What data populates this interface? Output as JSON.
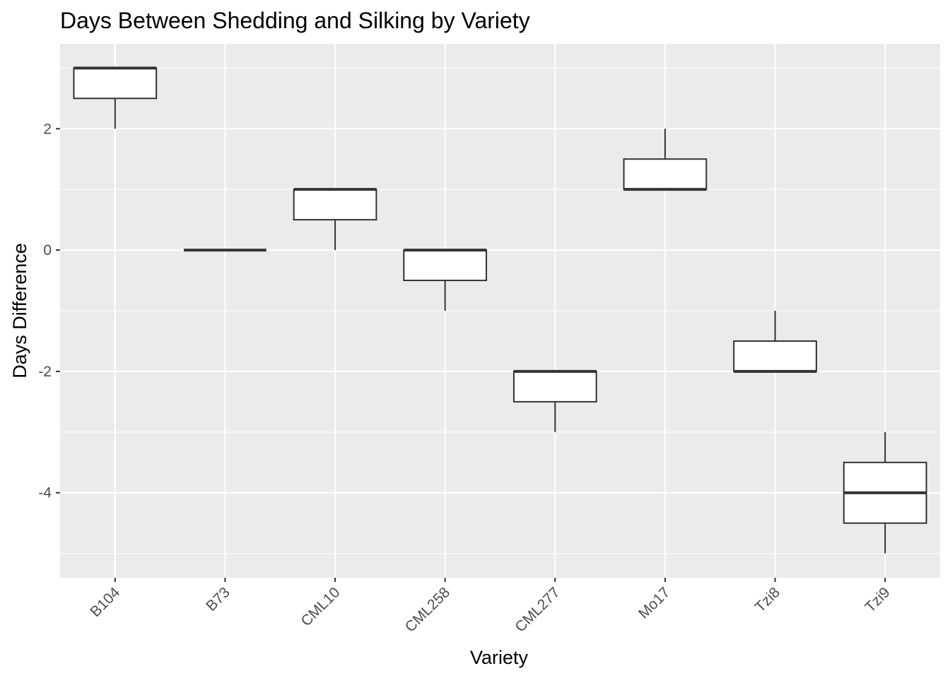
{
  "chart_data": {
    "type": "boxplot",
    "title": "Days Between Shedding and Silking by Variety",
    "xlabel": "Variety",
    "ylabel": "Days Difference",
    "ylim": [
      -5.4,
      3.4
    ],
    "yticks": [
      -4,
      -2,
      0,
      2
    ],
    "grid": true,
    "categories": [
      "B104",
      "B73",
      "CML10",
      "CML258",
      "CML277",
      "Mo17",
      "Tzi8",
      "Tzi9"
    ],
    "boxes": [
      {
        "category": "B104",
        "min": 2,
        "q1": 2.5,
        "median": 3,
        "q3": 3,
        "max": 3
      },
      {
        "category": "B73",
        "min": 0,
        "q1": 0,
        "median": 0,
        "q3": 0,
        "max": 0
      },
      {
        "category": "CML10",
        "min": 0,
        "q1": 0.5,
        "median": 1,
        "q3": 1,
        "max": 1
      },
      {
        "category": "CML258",
        "min": -1,
        "q1": -0.5,
        "median": 0,
        "q3": 0,
        "max": 0
      },
      {
        "category": "CML277",
        "min": -3,
        "q1": -2.5,
        "median": -2,
        "q3": -2,
        "max": -2
      },
      {
        "category": "Mo17",
        "min": 1,
        "q1": 1,
        "median": 1,
        "q3": 1.5,
        "max": 2
      },
      {
        "category": "Tzi8",
        "min": -2,
        "q1": -2,
        "median": -2,
        "q3": -1.5,
        "max": -1
      },
      {
        "category": "Tzi9",
        "min": -5,
        "q1": -4.5,
        "median": -4,
        "q3": -3.5,
        "max": -3
      }
    ],
    "colors": {
      "panel": "#ebebeb",
      "grid": "#ffffff",
      "box_fill": "#ffffff",
      "box_line": "#333333"
    }
  }
}
